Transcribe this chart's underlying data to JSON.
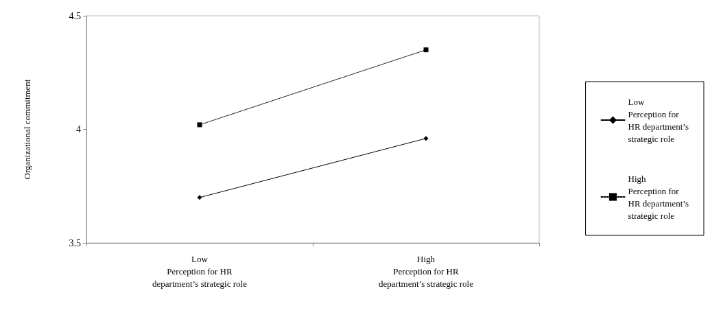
{
  "chart_data": {
    "type": "line",
    "ylabel": "Organizational commitment",
    "categories": [
      "Low\nPerception for HR\ndepartment’s strategic role",
      "High\nPerception for HR\ndepartment’s strategic role"
    ],
    "series": [
      {
        "name": "Low\nPerception for\nHR department’s\nstrategic role",
        "color": "#000000",
        "values": [
          3.7,
          3.96
        ],
        "marker": "diamond",
        "line_style": "solid"
      },
      {
        "name": "High\nPerception for\nHR department’s\nstrategic role",
        "color": "#000000",
        "values": [
          4.02,
          4.35
        ],
        "marker": "square",
        "line_style": "dotted"
      }
    ],
    "ylim": [
      3.5,
      4.5
    ],
    "yticks": [
      3.5,
      4,
      4.5
    ],
    "grid": false,
    "legend": "right"
  }
}
